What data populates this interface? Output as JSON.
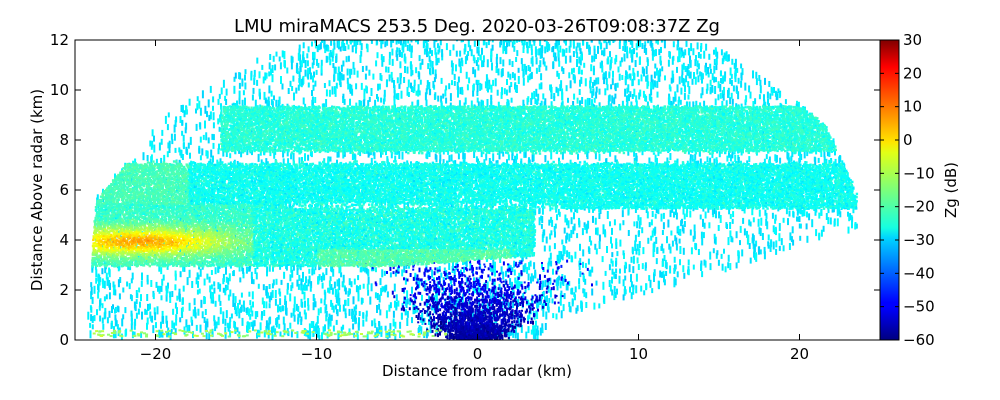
{
  "chart_data": {
    "type": "heatmap",
    "title": "LMU miraMACS 253.5 Deg. 2020-03-26T09:08:37Z  Zg",
    "xlabel": "Distance from radar (km)",
    "ylabel": "Distance Above radar  (km)",
    "xlim": [
      -25,
      25
    ],
    "ylim": [
      0,
      12
    ],
    "x_ticks": [
      -20,
      -10,
      0,
      10,
      20
    ],
    "x_tick_labels": [
      "−20",
      "−10",
      "0",
      "10",
      "20"
    ],
    "y_ticks": [
      0,
      2,
      4,
      6,
      8,
      10,
      12
    ],
    "y_tick_labels": [
      "0",
      "2",
      "4",
      "6",
      "8",
      "10",
      "12"
    ],
    "grid": false,
    "colorbar": {
      "label": "Zg (dB)",
      "range": [
        -60,
        30
      ],
      "ticks": [
        -60,
        -50,
        -40,
        -30,
        -20,
        -10,
        0,
        10,
        20,
        30
      ],
      "tick_labels": [
        "−60",
        "−50",
        "−40",
        "−30",
        "−20",
        "−10",
        "0",
        "10",
        "20",
        "30"
      ],
      "colormap": "jet"
    },
    "scan": {
      "left_edge": [
        [
          -24.3,
          0.3
        ],
        [
          -23.7,
          5.5
        ],
        [
          -19.5,
          8.8
        ],
        [
          -13.5,
          11.2
        ],
        [
          -9.5,
          12
        ]
      ],
      "right_edge": [
        [
          4.5,
          0.7
        ],
        [
          15,
          2.6
        ],
        [
          21.5,
          4.0
        ],
        [
          23.5,
          4.3
        ],
        [
          23.5,
          5.8
        ],
        [
          21.5,
          8.6
        ],
        [
          15,
          11.5
        ],
        [
          11,
          12
        ]
      ]
    },
    "features": [
      {
        "kind": "cirrus-layer",
        "x": [
          -14,
          22
        ],
        "y": [
          7.5,
          9.2
        ],
        "zg": -23
      },
      {
        "kind": "mid-layer",
        "x": [
          -24,
          23
        ],
        "y": [
          5.3,
          7.0
        ],
        "zg": -24
      },
      {
        "kind": "main-layer",
        "x": [
          -24,
          2
        ],
        "y": [
          2.9,
          5.3
        ],
        "zg": -17
      },
      {
        "kind": "max-reflectivity",
        "x": [
          -24,
          -15
        ],
        "y": [
          3.4,
          4.4
        ],
        "zg": 4
      },
      {
        "kind": "low-noise",
        "x": [
          -4,
          3
        ],
        "y": [
          0,
          3
        ],
        "zg": -52
      }
    ]
  }
}
